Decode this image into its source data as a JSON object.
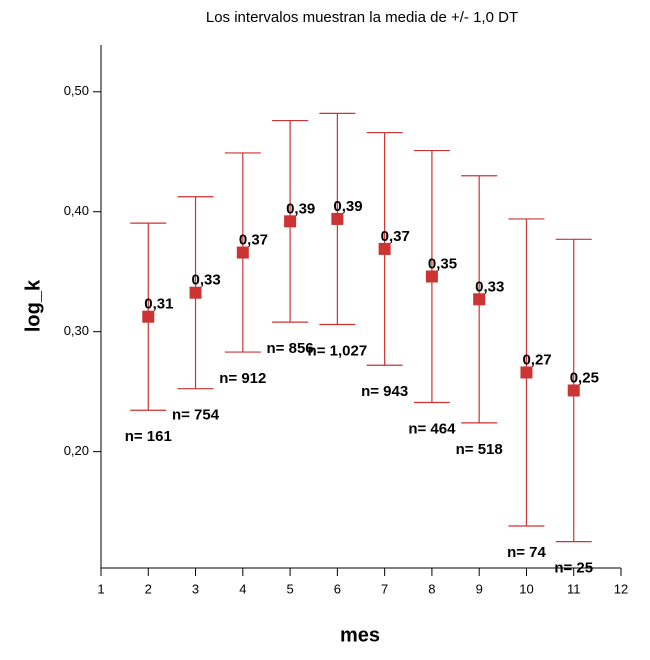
{
  "chart_data": {
    "type": "errorbar",
    "title": "Los intervalos muestran la media de +/- 1,0 DT",
    "xlabel": "mes",
    "ylabel": "log_k",
    "x": [
      2,
      3,
      4,
      5,
      6,
      7,
      8,
      9,
      10,
      11
    ],
    "values": [
      0.3125,
      0.3325,
      0.366,
      0.392,
      0.394,
      0.369,
      0.346,
      0.327,
      0.266,
      0.251
    ],
    "value_labels": [
      "0,31",
      "0,33",
      "0,37",
      "0,39",
      "0,39",
      "0,37",
      "0,35",
      "0,33",
      "0,27",
      "0,25"
    ],
    "errors": [
      0.078,
      0.08,
      0.083,
      0.084,
      0.088,
      0.097,
      0.105,
      0.103,
      0.128,
      0.126
    ],
    "count_labels": [
      "n= 161",
      "n= 754",
      "n= 912",
      "n= 856",
      "n= 1,027",
      "n= 943",
      "n= 464",
      "n= 518",
      "n= 74",
      "n= 25"
    ],
    "color": "#cc3333",
    "xlim": [
      1,
      12
    ],
    "xticks": [
      1,
      2,
      3,
      4,
      5,
      6,
      7,
      8,
      9,
      10,
      11,
      12
    ],
    "ylim": [
      0.103,
      0.539
    ],
    "yticks": [
      {
        "value": 0.2,
        "label": "0,20"
      },
      {
        "value": 0.3,
        "label": "0,30"
      },
      {
        "value": 0.4,
        "label": "0,40"
      },
      {
        "value": 0.5,
        "label": "0,50"
      }
    ]
  }
}
